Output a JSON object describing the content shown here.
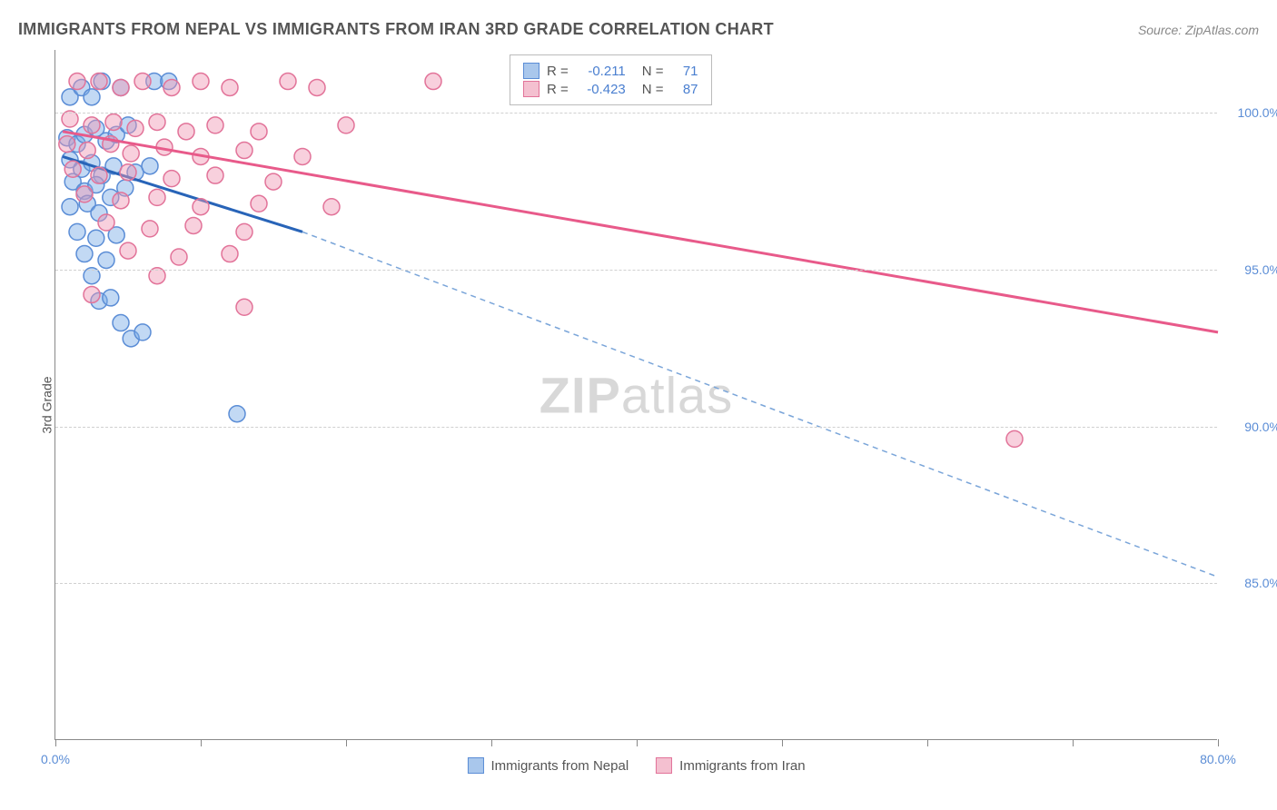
{
  "header": {
    "title": "IMMIGRANTS FROM NEPAL VS IMMIGRANTS FROM IRAN 3RD GRADE CORRELATION CHART",
    "source": "Source: ZipAtlas.com"
  },
  "axes": {
    "y_label": "3rd Grade",
    "x_min": 0,
    "x_max": 80,
    "y_min": 80,
    "y_max": 102,
    "x_ticks": [
      0,
      10,
      20,
      30,
      40,
      50,
      60,
      70,
      80
    ],
    "x_tick_labels": {
      "0": "0.0%",
      "80": "80.0%"
    },
    "y_ticks": [
      85,
      90,
      95,
      100
    ],
    "y_tick_labels": {
      "85": "85.0%",
      "90": "90.0%",
      "95": "95.0%",
      "100": "100.0%"
    }
  },
  "series": [
    {
      "id": "nepal",
      "label": "Immigrants from Nepal",
      "color_fill": "rgba(120,170,230,0.45)",
      "color_stroke": "#5b8dd6",
      "swatch_fill": "#a9c7ec",
      "swatch_border": "#5b8dd6",
      "r_value": "-0.211",
      "n_value": "71",
      "trend": {
        "solid": {
          "x1": 0.5,
          "y1": 98.6,
          "x2": 17,
          "y2": 96.2
        },
        "dashed": {
          "x1": 17,
          "y1": 96.2,
          "x2": 80,
          "y2": 85.2
        },
        "solid_color": "#2864b8",
        "solid_width": 3,
        "dash_color": "#7aa5d9",
        "dash_width": 1.5,
        "dash_pattern": "6 5"
      },
      "points": [
        [
          1,
          100.5
        ],
        [
          1.8,
          100.8
        ],
        [
          2.5,
          100.5
        ],
        [
          3.2,
          101
        ],
        [
          4.5,
          100.8
        ],
        [
          6.8,
          101
        ],
        [
          7.8,
          101
        ],
        [
          0.8,
          99.2
        ],
        [
          1.5,
          99.0
        ],
        [
          2.0,
          99.3
        ],
        [
          2.8,
          99.5
        ],
        [
          3.5,
          99.1
        ],
        [
          4.2,
          99.3
        ],
        [
          5.0,
          99.6
        ],
        [
          1.0,
          98.5
        ],
        [
          1.8,
          98.2
        ],
        [
          2.5,
          98.4
        ],
        [
          3.2,
          98.0
        ],
        [
          4.0,
          98.3
        ],
        [
          5.5,
          98.1
        ],
        [
          6.5,
          98.3
        ],
        [
          1.2,
          97.8
        ],
        [
          2.0,
          97.5
        ],
        [
          2.8,
          97.7
        ],
        [
          3.8,
          97.3
        ],
        [
          4.8,
          97.6
        ],
        [
          1.0,
          97.0
        ],
        [
          2.2,
          97.1
        ],
        [
          3.0,
          96.8
        ],
        [
          1.5,
          96.2
        ],
        [
          2.8,
          96.0
        ],
        [
          4.2,
          96.1
        ],
        [
          2.0,
          95.5
        ],
        [
          3.5,
          95.3
        ],
        [
          2.5,
          94.8
        ],
        [
          3.0,
          94.0
        ],
        [
          3.8,
          94.1
        ],
        [
          4.5,
          93.3
        ],
        [
          5.2,
          92.8
        ],
        [
          6.0,
          93.0
        ],
        [
          12.5,
          90.4
        ]
      ]
    },
    {
      "id": "iran",
      "label": "Immigrants from Iran",
      "color_fill": "rgba(240,150,180,0.45)",
      "color_stroke": "#e27399",
      "swatch_fill": "#f4c0d0",
      "swatch_border": "#e27399",
      "r_value": "-0.423",
      "n_value": "87",
      "trend": {
        "solid": {
          "x1": 0.5,
          "y1": 99.4,
          "x2": 80,
          "y2": 93.0
        },
        "solid_color": "#e85a8a",
        "solid_width": 3
      },
      "points": [
        [
          1.5,
          101
        ],
        [
          3,
          101
        ],
        [
          4.5,
          100.8
        ],
        [
          6,
          101
        ],
        [
          8,
          100.8
        ],
        [
          10,
          101
        ],
        [
          12,
          100.8
        ],
        [
          16,
          101
        ],
        [
          18,
          100.8
        ],
        [
          26,
          101
        ],
        [
          1.0,
          99.8
        ],
        [
          2.5,
          99.6
        ],
        [
          4.0,
          99.7
        ],
        [
          5.5,
          99.5
        ],
        [
          7.0,
          99.7
        ],
        [
          9.0,
          99.4
        ],
        [
          11,
          99.6
        ],
        [
          14,
          99.4
        ],
        [
          20,
          99.6
        ],
        [
          0.8,
          99.0
        ],
        [
          2.2,
          98.8
        ],
        [
          3.8,
          99.0
        ],
        [
          5.2,
          98.7
        ],
        [
          7.5,
          98.9
        ],
        [
          10,
          98.6
        ],
        [
          13,
          98.8
        ],
        [
          17,
          98.6
        ],
        [
          1.2,
          98.2
        ],
        [
          3.0,
          98.0
        ],
        [
          5.0,
          98.1
        ],
        [
          8.0,
          97.9
        ],
        [
          11,
          98.0
        ],
        [
          15,
          97.8
        ],
        [
          2.0,
          97.4
        ],
        [
          4.5,
          97.2
        ],
        [
          7.0,
          97.3
        ],
        [
          10,
          97.0
        ],
        [
          14,
          97.1
        ],
        [
          19,
          97.0
        ],
        [
          3.5,
          96.5
        ],
        [
          6.5,
          96.3
        ],
        [
          9.5,
          96.4
        ],
        [
          13,
          96.2
        ],
        [
          5.0,
          95.6
        ],
        [
          8.5,
          95.4
        ],
        [
          12,
          95.5
        ],
        [
          7.0,
          94.8
        ],
        [
          2.5,
          94.2
        ],
        [
          13,
          93.8
        ],
        [
          66,
          89.6
        ]
      ]
    }
  ],
  "stats_box": {
    "r_label": "R  =",
    "n_label": "N  ="
  },
  "watermark": {
    "pre": "ZIP",
    "post": "atlas"
  },
  "styling": {
    "marker_radius": 9,
    "marker_stroke_width": 1.5,
    "background": "#ffffff",
    "border_color": "#888888",
    "grid_color": "#d0d0d0",
    "title_color": "#555555",
    "tick_label_color": "#5b8dd6",
    "title_fontsize": 18,
    "label_fontsize": 14
  }
}
